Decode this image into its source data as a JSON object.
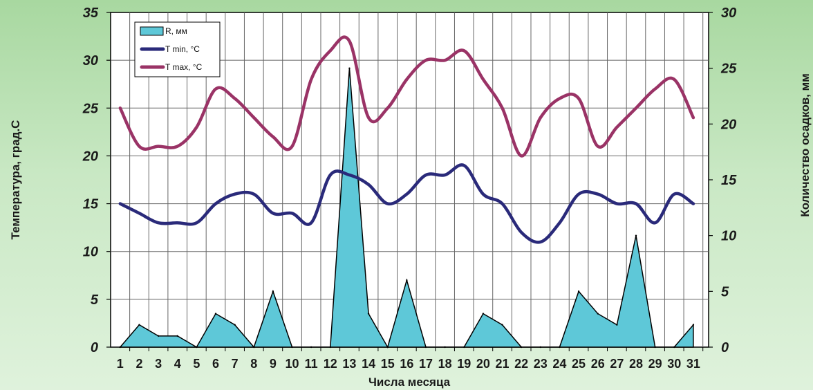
{
  "chart_data": {
    "type": "line",
    "xlabel": "Числа месяца",
    "ylabel_left": "Температура, град.С",
    "ylabel_right": "Количество осадков, мм",
    "ylim_left": [
      0,
      35
    ],
    "ylim_right": [
      0,
      30
    ],
    "yticks_left": [
      "0",
      "5",
      "10",
      "15",
      "20",
      "25",
      "30",
      "35"
    ],
    "yticks_right": [
      "0",
      "5",
      "10",
      "15",
      "20",
      "25",
      "30"
    ],
    "categories": [
      "1",
      "2",
      "3",
      "4",
      "5",
      "6",
      "7",
      "8",
      "9",
      "10",
      "11",
      "12",
      "13",
      "14",
      "15",
      "16",
      "17",
      "18",
      "19",
      "20",
      "21",
      "22",
      "23",
      "24",
      "25",
      "26",
      "27",
      "28",
      "29",
      "30",
      "31"
    ],
    "grid": true,
    "legend_position": "top-left",
    "series": [
      {
        "name": "R, мм",
        "kind": "area",
        "axis": "right",
        "color": "#5ec8d8",
        "values": [
          0,
          2,
          1,
          1,
          0,
          3,
          2,
          0,
          5,
          0,
          0,
          0,
          25,
          3,
          0,
          6,
          0,
          0,
          0,
          3,
          2,
          0,
          0,
          0,
          5,
          3,
          2,
          10,
          0,
          0,
          2
        ]
      },
      {
        "name": "T min, °C",
        "kind": "line",
        "axis": "left",
        "color": "#2a2a7a",
        "values": [
          15,
          14,
          13,
          13,
          13,
          15,
          16,
          16,
          14,
          14,
          13,
          18,
          18,
          17,
          15,
          16,
          18,
          18,
          19,
          16,
          15,
          12,
          11,
          13,
          16,
          16,
          15,
          15,
          13,
          16,
          15
        ]
      },
      {
        "name": "T max, °C",
        "kind": "line",
        "axis": "left",
        "color": "#9a3366",
        "values": [
          25,
          21,
          21,
          21,
          23,
          27,
          26,
          24,
          22,
          21,
          28,
          31,
          32,
          24,
          25,
          28,
          30,
          30,
          31,
          28,
          25,
          20,
          24,
          26,
          26,
          21,
          23,
          25,
          27,
          28,
          24
        ]
      }
    ]
  }
}
